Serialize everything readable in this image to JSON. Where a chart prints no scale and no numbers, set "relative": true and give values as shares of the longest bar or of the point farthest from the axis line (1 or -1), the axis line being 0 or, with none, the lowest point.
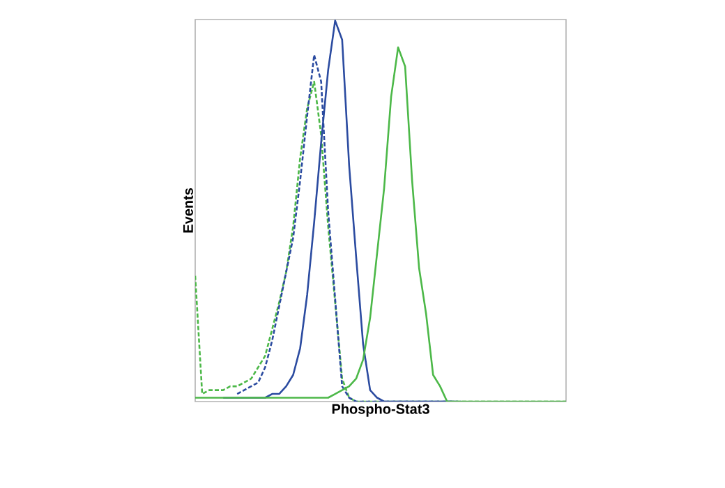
{
  "chart_data": {
    "type": "line",
    "relative": true,
    "ylabel": "Events",
    "xlabel": "Phospho-Stat3",
    "tick_labels": false,
    "categories": [
      null,
      null,
      null,
      null,
      null,
      null,
      null,
      null,
      null,
      null,
      null,
      null,
      null,
      null,
      null,
      null,
      null,
      null,
      null,
      null,
      null,
      null,
      null,
      null,
      null,
      null,
      null,
      null,
      null,
      null,
      null,
      null,
      null,
      null,
      null,
      null,
      null,
      null,
      null,
      null,
      null,
      null,
      null,
      null,
      null,
      null,
      null,
      null,
      null,
      null,
      null,
      null,
      null,
      null
    ],
    "series": [
      {
        "color": "#4cb848",
        "line_style": "dashed",
        "values": [
          0.33,
          0.02,
          0.03,
          0.03,
          0.03,
          0.04,
          0.04,
          0.05,
          0.06,
          0.09,
          0.12,
          0.19,
          0.26,
          0.34,
          0.46,
          0.64,
          0.77,
          0.84,
          0.7,
          0.46,
          0.26,
          0.06,
          0.01,
          0,
          0,
          0,
          0,
          0,
          0,
          0,
          0,
          0,
          0,
          0,
          0,
          0,
          0,
          0,
          0,
          0,
          0,
          0,
          0,
          0,
          0,
          0,
          0,
          0,
          0,
          0,
          0,
          0,
          0,
          0
        ]
      },
      {
        "color": "#2b4ba0",
        "line_style": "dashed",
        "values": [
          null,
          null,
          null,
          null,
          null,
          null,
          0.02,
          0.03,
          0.04,
          0.05,
          0.09,
          0.16,
          0.25,
          0.34,
          0.43,
          0.58,
          0.75,
          0.91,
          0.84,
          0.5,
          0.27,
          0.04,
          0.01,
          0,
          0,
          0,
          0,
          0,
          0,
          0,
          0,
          0,
          0,
          0,
          0,
          0,
          0,
          0,
          0,
          null,
          null,
          null,
          null,
          null,
          null,
          null,
          null,
          null,
          null,
          null,
          null,
          null,
          null,
          null
        ]
      },
      {
        "color": "#2b4ba0",
        "line_style": "solid",
        "values": [
          null,
          null,
          null,
          null,
          0.01,
          0.01,
          0.01,
          0.01,
          0.01,
          0.01,
          0.01,
          0.02,
          0.02,
          0.04,
          0.07,
          0.14,
          0.28,
          0.47,
          0.68,
          0.87,
          1,
          0.95,
          0.62,
          0.38,
          0.15,
          0.03,
          0.01,
          0,
          0,
          0,
          0,
          0,
          0,
          0,
          0,
          0,
          0,
          0,
          null,
          null,
          null,
          null,
          null,
          null,
          null,
          null,
          null,
          null,
          null,
          null,
          null,
          null,
          null,
          null
        ]
      },
      {
        "color": "#4cb848",
        "line_style": "solid",
        "values": [
          0.01,
          0.01,
          0.01,
          0.01,
          0.01,
          0.01,
          0.01,
          0.01,
          0.01,
          0.01,
          0.01,
          0.01,
          0.01,
          0.01,
          0.01,
          0.01,
          0.01,
          0.01,
          0.01,
          0.01,
          0.02,
          0.03,
          0.04,
          0.06,
          0.11,
          0.22,
          0.39,
          0.56,
          0.8,
          0.93,
          0.88,
          0.58,
          0.35,
          0.23,
          0.07,
          0.04,
          0,
          0,
          0,
          0,
          0,
          0,
          0,
          0,
          0,
          0,
          0,
          0,
          0,
          0,
          0,
          0,
          0,
          0
        ]
      }
    ]
  }
}
